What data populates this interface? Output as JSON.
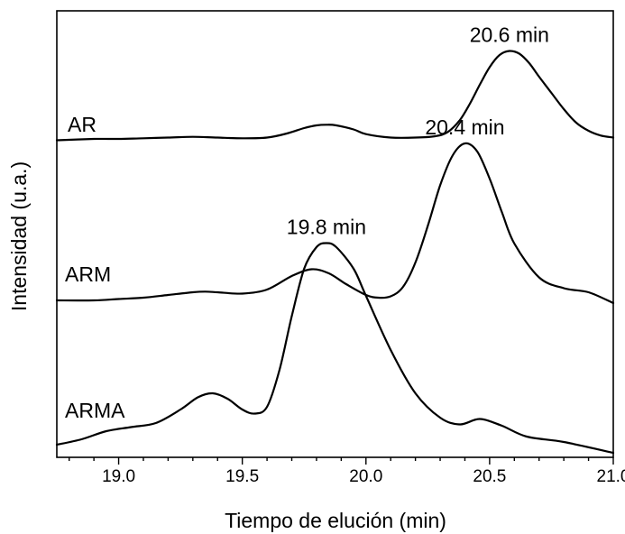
{
  "chart_data": {
    "type": "line",
    "title": "",
    "xlabel": "Tiempo de elución (min)",
    "ylabel": "Intensidad (u.a.)",
    "xlim": [
      18.75,
      21.0
    ],
    "x_ticks": [
      19.0,
      19.5,
      20.0,
      20.5,
      21.0
    ],
    "x_tick_labels": [
      "19.0",
      "19.5",
      "20.0",
      "20.5",
      "21.0"
    ],
    "y_ticks_shown": false,
    "grid": false,
    "legend": "none",
    "ylim": [
      0,
      3.2
    ],
    "series": [
      {
        "name": "AR",
        "color": "#000000",
        "peak_label": "20.6 min",
        "peak_x": 20.58,
        "x": [
          18.75,
          18.9,
          19.0,
          19.1,
          19.2,
          19.3,
          19.4,
          19.5,
          19.6,
          19.68,
          19.75,
          19.8,
          19.84,
          19.88,
          19.95,
          20.0,
          20.1,
          20.2,
          20.28,
          20.33,
          20.38,
          20.42,
          20.46,
          20.5,
          20.54,
          20.58,
          20.62,
          20.66,
          20.7,
          20.75,
          20.8,
          20.85,
          20.9,
          20.95,
          21.0
        ],
        "y": [
          2.01,
          2.02,
          2.02,
          2.025,
          2.03,
          2.035,
          2.03,
          2.025,
          2.03,
          2.06,
          2.1,
          2.12,
          2.125,
          2.12,
          2.09,
          2.055,
          2.03,
          2.03,
          2.04,
          2.07,
          2.16,
          2.28,
          2.42,
          2.55,
          2.64,
          2.67,
          2.65,
          2.58,
          2.48,
          2.36,
          2.24,
          2.14,
          2.08,
          2.045,
          2.03
        ]
      },
      {
        "name": "ARM",
        "color": "#000000",
        "peak_label": "20.4 min",
        "peak_x": 20.4,
        "x": [
          18.75,
          18.9,
          19.0,
          19.1,
          19.2,
          19.3,
          19.35,
          19.4,
          19.5,
          19.6,
          19.7,
          19.78,
          19.85,
          19.92,
          20.0,
          20.05,
          20.1,
          20.15,
          20.2,
          20.25,
          20.3,
          20.35,
          20.4,
          20.45,
          20.5,
          20.55,
          20.6,
          20.7,
          20.8,
          20.9,
          21.0
        ],
        "y": [
          1.0,
          1.0,
          1.01,
          1.02,
          1.04,
          1.06,
          1.065,
          1.06,
          1.05,
          1.08,
          1.18,
          1.23,
          1.2,
          1.12,
          1.04,
          1.02,
          1.03,
          1.1,
          1.28,
          1.55,
          1.85,
          2.07,
          2.16,
          2.1,
          1.9,
          1.65,
          1.42,
          1.17,
          1.09,
          1.06,
          0.98
        ]
      },
      {
        "name": "ARMA",
        "color": "#000000",
        "peak_label": "19.8 min",
        "peak_x": 19.84,
        "x": [
          18.75,
          18.85,
          18.95,
          19.05,
          19.15,
          19.25,
          19.32,
          19.38,
          19.44,
          19.5,
          19.55,
          19.6,
          19.65,
          19.7,
          19.75,
          19.8,
          19.84,
          19.88,
          19.95,
          20.0,
          20.1,
          20.2,
          20.3,
          20.38,
          20.46,
          20.55,
          20.65,
          20.8,
          21.0
        ],
        "y": [
          0.0,
          0.04,
          0.1,
          0.13,
          0.16,
          0.26,
          0.35,
          0.38,
          0.34,
          0.26,
          0.23,
          0.28,
          0.55,
          0.95,
          1.3,
          1.46,
          1.49,
          1.46,
          1.3,
          1.1,
          0.7,
          0.38,
          0.2,
          0.15,
          0.19,
          0.14,
          0.06,
          0.02,
          -0.06
        ]
      }
    ]
  }
}
